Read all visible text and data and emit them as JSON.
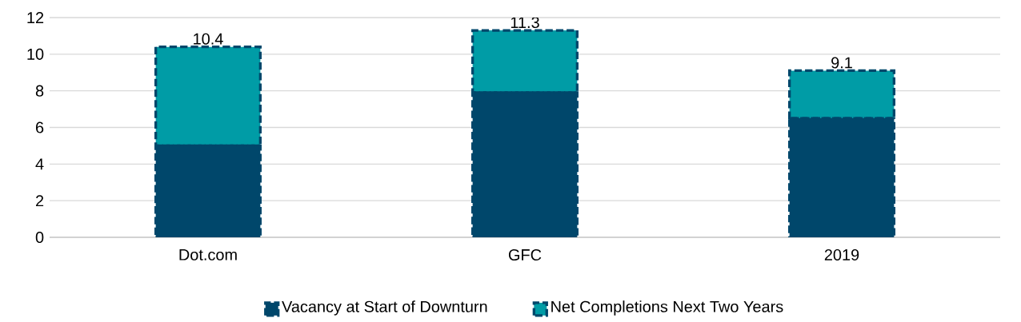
{
  "chart_data": {
    "type": "bar",
    "stacked": true,
    "categories": [
      "Dot.com",
      "GFC",
      "2019"
    ],
    "series": [
      {
        "name": "Vacancy at Start of Downturn",
        "color": "#00476b",
        "values": [
          5.0,
          7.9,
          6.5
        ]
      },
      {
        "name": "Net Completions Next Two Years",
        "color": "#009ca6",
        "values": [
          5.4,
          3.4,
          2.6
        ]
      }
    ],
    "totals": [
      "10.4",
      "11.3",
      "9.1"
    ],
    "ylim": [
      0,
      12
    ],
    "yticks": [
      0,
      2,
      4,
      6,
      8,
      10,
      12
    ],
    "grid": "y",
    "legend": "bottom"
  }
}
